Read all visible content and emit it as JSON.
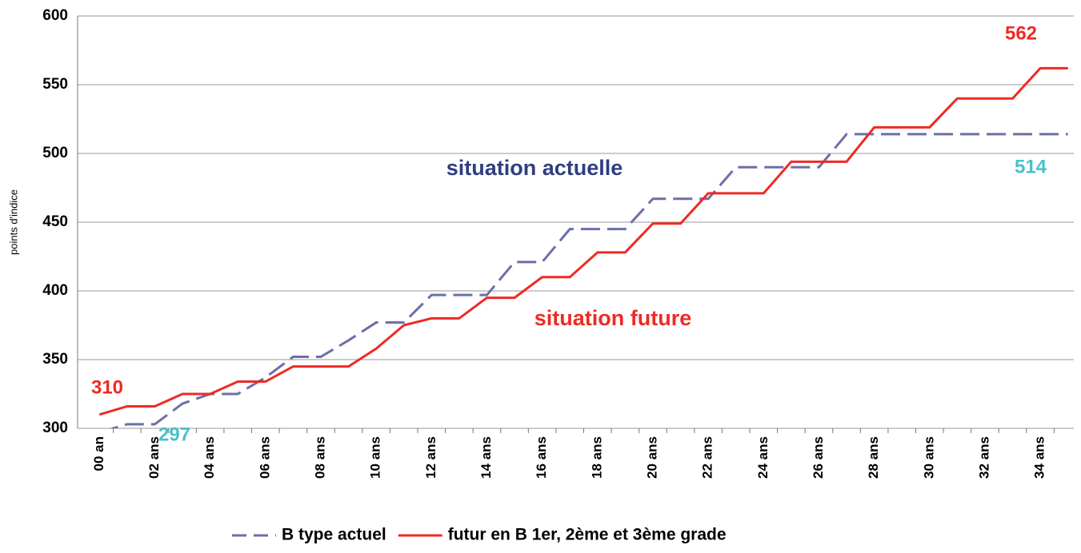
{
  "chart_data": {
    "type": "line",
    "y_label": "points d'indice",
    "categories": [
      "00 an",
      null,
      "02 ans",
      null,
      "04 ans",
      null,
      "06 ans",
      null,
      "08 ans",
      null,
      "10 ans",
      null,
      "12 ans",
      null,
      "14 ans",
      null,
      "16 ans",
      null,
      "18 ans",
      null,
      "20 ans",
      null,
      "22 ans",
      null,
      "24 ans",
      null,
      "26 ans",
      null,
      "28 ans",
      null,
      "30 ans",
      null,
      "32 ans",
      null,
      "34 ans",
      null
    ],
    "series": [
      {
        "name": "B type actuel",
        "color": "#6b6fa8",
        "dashed": true,
        "values": [
          297,
          303,
          303,
          318,
          325,
          325,
          337,
          352,
          352,
          364,
          377,
          377,
          397,
          397,
          397,
          421,
          421,
          445,
          445,
          445,
          467,
          467,
          467,
          490,
          490,
          490,
          490,
          514,
          514,
          514,
          514,
          514,
          514,
          514,
          514,
          514
        ]
      },
      {
        "name": "futur en B 1er, 2ème et 3ème grade",
        "color": "#ee2a24",
        "dashed": false,
        "values": [
          310,
          316,
          316,
          325,
          325,
          334,
          334,
          345,
          345,
          345,
          358,
          375,
          380,
          380,
          395,
          395,
          410,
          410,
          428,
          428,
          449,
          449,
          471,
          471,
          471,
          494,
          494,
          494,
          519,
          519,
          519,
          540,
          540,
          540,
          562,
          562
        ]
      }
    ],
    "annotations": [
      "situation actuelle",
      "situation future"
    ],
    "ylim": [
      300,
      600
    ],
    "yticks": [
      300,
      350,
      400,
      450,
      500,
      550,
      600
    ],
    "grid": true,
    "legend": "bottom"
  }
}
